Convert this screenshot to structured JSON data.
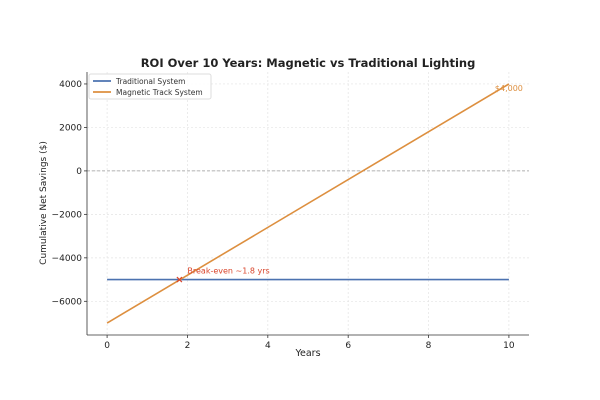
{
  "chart_data": {
    "type": "line",
    "title": "ROI Over 10 Years: Magnetic vs Traditional Lighting",
    "xlabel": "Years",
    "ylabel": "Cumulative Net Savings ($)",
    "xlim": [
      -0.5,
      10.5
    ],
    "ylim": [
      -7550,
      4550
    ],
    "xticks": [
      0,
      2,
      4,
      6,
      8,
      10
    ],
    "xtick_labels": [
      "0",
      "2",
      "4",
      "6",
      "8",
      "10"
    ],
    "yticks": [
      -6000,
      -4000,
      -2000,
      0,
      2000,
      4000
    ],
    "ytick_labels": [
      "−6000",
      "−4000",
      "−2000",
      "0",
      "2000",
      "4000"
    ],
    "grid": true,
    "legend_position": "top-left",
    "series": [
      {
        "name": "Traditional System",
        "color": "#4c72b0",
        "x": [
          0,
          10
        ],
        "y": [
          -5000,
          -5000
        ]
      },
      {
        "name": "Magnetic Track System",
        "color": "#dd8f3f",
        "x": [
          0,
          10
        ],
        "y": [
          -7000,
          4000
        ]
      }
    ],
    "reference_line": {
      "y": 0,
      "color": "#999999",
      "style": "dashed"
    },
    "annotations": [
      {
        "text": "$4,000",
        "x": 10,
        "y": 4000,
        "color": "#dd8f3f"
      },
      {
        "text": "Break-even ~1.8 yrs",
        "x": 1.8,
        "y": -5000,
        "color": "#d9452b",
        "marker": "x"
      }
    ]
  }
}
